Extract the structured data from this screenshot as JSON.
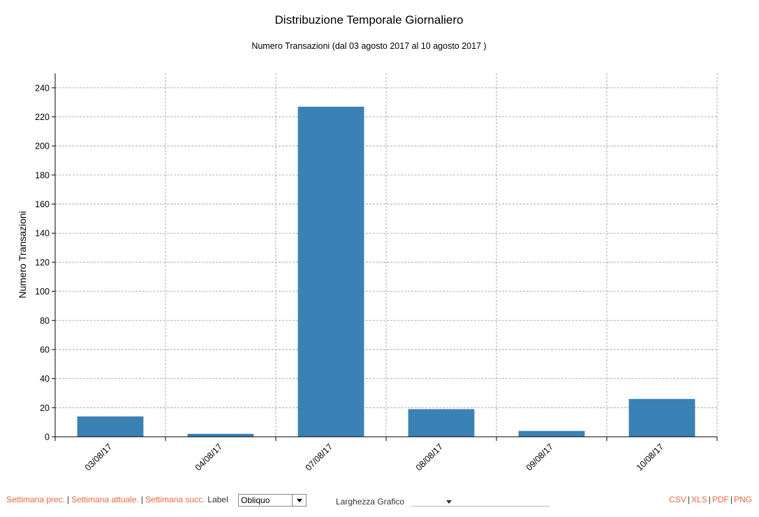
{
  "title": "Distribuzione Temporale Giornaliero",
  "subtitle": "Numero Transazioni (dal 03 agosto 2017 al 10 agosto 2017 )",
  "chart_data": {
    "type": "bar",
    "categories": [
      "03/08/17",
      "04/08/17",
      "07/08/17",
      "08/08/17",
      "09/08/17",
      "10/08/17"
    ],
    "values": [
      14,
      2,
      227,
      19,
      4,
      26
    ],
    "ylabel": "Numero Transazioni",
    "xlabel": "",
    "ylim": [
      0,
      250
    ],
    "yticks": [
      0,
      20,
      40,
      60,
      80,
      100,
      120,
      140,
      160,
      180,
      200,
      220,
      240
    ],
    "grid": true,
    "bar_color": "#3a81b6",
    "grid_color": "#9a9a9a",
    "tick_label_rotation": "oblique"
  },
  "footer": {
    "prev_week": "Settimana prec.",
    "current_week": "Settimana attuale.",
    "next_week": "Settimana succ.",
    "separator": "|",
    "label_text": "Label",
    "label_select_value": "Obliquo",
    "width_label": "Larghezza Grafico",
    "export": {
      "csv": "CSV",
      "xls": "XLS",
      "pdf": "PDF",
      "png": "PNG"
    },
    "link_color": "#e8693a"
  }
}
